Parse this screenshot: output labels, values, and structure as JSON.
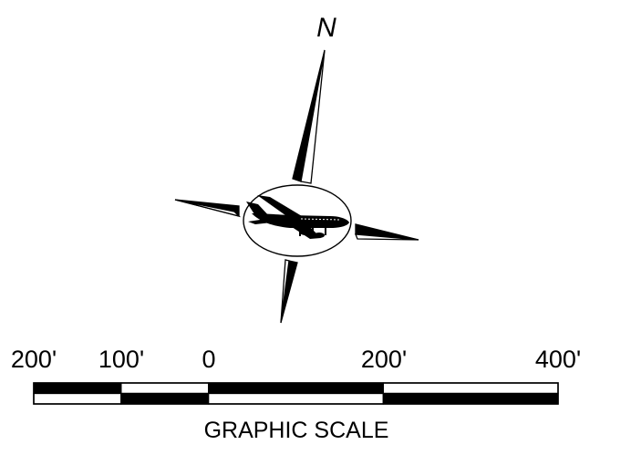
{
  "compass": {
    "north_label": "N",
    "center_icon": "airplane-icon"
  },
  "scale_bar": {
    "tick_labels": [
      "200'",
      "100'",
      "0",
      "200'",
      "400'"
    ],
    "tick_values": [
      -200,
      -100,
      0,
      200,
      400
    ],
    "unit": "ft",
    "caption": "GRAPHIC SCALE"
  },
  "colors": {
    "ink": "#000000",
    "paper": "#ffffff"
  }
}
